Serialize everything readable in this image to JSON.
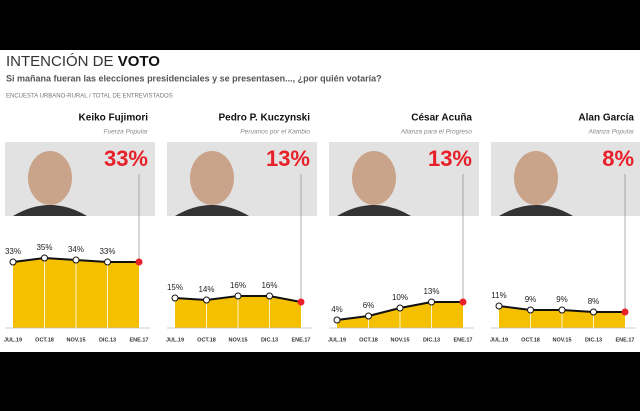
{
  "header": {
    "title_light": "INTENCIÓN DE",
    "title_bold": "VOTO",
    "subtitle": "Si mañana fueran las elecciones presidenciales y se presentasen..., ¿por quién votaría?",
    "source": "ENCUESTA URBANO-RURAL / TOTAL DE ENTREVISTADOS"
  },
  "chart_data": [
    {
      "type": "area",
      "title": "Keiko Fujimori",
      "subtitle": "Fuerza Popular",
      "categories": [
        "JUL.19",
        "OCT.18",
        "NOV.15",
        "DIC.13",
        "ENE.17"
      ],
      "values": [
        33,
        35,
        34,
        33,
        33
      ],
      "value_labels": [
        "33%",
        "35%",
        "34%",
        "33%",
        "33%"
      ],
      "ylim": [
        0,
        45
      ],
      "color": "#f5c000",
      "line_color": "#111111",
      "last_color": "#e8202a"
    },
    {
      "type": "area",
      "title": "Pedro P. Kuczynski",
      "subtitle": "Peruanos por el Kambio",
      "categories": [
        "JUL.19",
        "OCT.18",
        "NOV.15",
        "DIC.13",
        "ENE.17"
      ],
      "values": [
        15,
        14,
        16,
        16,
        13
      ],
      "value_labels": [
        "15%",
        "14%",
        "16%",
        "16%",
        "13%"
      ],
      "ylim": [
        0,
        45
      ],
      "color": "#f5c000",
      "line_color": "#111111",
      "last_color": "#e8202a"
    },
    {
      "type": "area",
      "title": "César Acuña",
      "subtitle": "Alianza para el Progreso",
      "categories": [
        "JUL.19",
        "OCT.18",
        "NOV.15",
        "DIC.13",
        "ENE.17"
      ],
      "values": [
        4,
        6,
        10,
        13,
        13
      ],
      "value_labels": [
        "4%",
        "6%",
        "10%",
        "13%",
        "13%"
      ],
      "ylim": [
        0,
        45
      ],
      "color": "#f5c000",
      "line_color": "#111111",
      "last_color": "#e8202a"
    },
    {
      "type": "area",
      "title": "Alan García",
      "subtitle": "Alianza Popular",
      "categories": [
        "JUL.19",
        "OCT.18",
        "NOV.15",
        "DIC.13",
        "ENE.17"
      ],
      "values": [
        11,
        9,
        9,
        8,
        8
      ],
      "value_labels": [
        "11%",
        "9%",
        "9%",
        "8%",
        "8%"
      ],
      "ylim": [
        0,
        45
      ],
      "color": "#f5c000",
      "line_color": "#111111",
      "last_color": "#e8202a"
    }
  ]
}
